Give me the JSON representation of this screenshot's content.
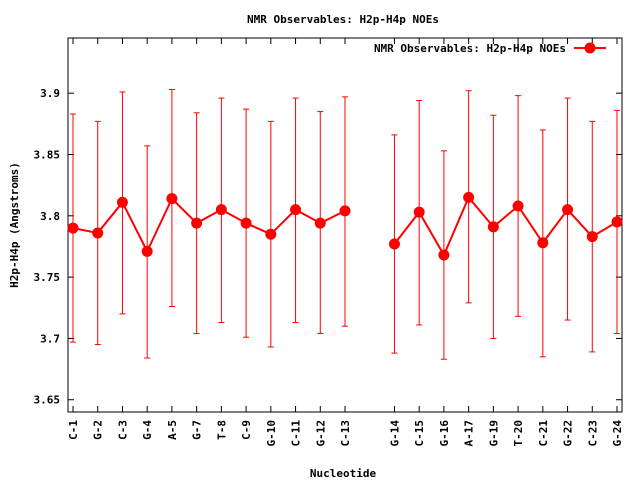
{
  "chart_data": {
    "type": "line",
    "title": "NMR Observables: H2p-H4p NOEs",
    "xlabel": "Nucleotide",
    "ylabel": "H2p-H4p (Angstroms)",
    "ylim": [
      3.64,
      3.945
    ],
    "yticks": [
      "3.65",
      "3.7",
      "3.75",
      "3.8",
      "3.85",
      "3.9"
    ],
    "grid": false,
    "legend_position": "top-right",
    "colors": {
      "series": "#ff0000",
      "axis": "#000000"
    },
    "series": [
      {
        "name": "NMR Observables: H2p-H4p NOEs",
        "points": [
          {
            "label": "C-1",
            "y": 3.79,
            "lo": 3.697,
            "hi": 3.883
          },
          {
            "label": "G-2",
            "y": 3.786,
            "lo": 3.695,
            "hi": 3.877
          },
          {
            "label": "C-3",
            "y": 3.811,
            "lo": 3.72,
            "hi": 3.901
          },
          {
            "label": "G-4",
            "y": 3.771,
            "lo": 3.684,
            "hi": 3.857
          },
          {
            "label": "A-5",
            "y": 3.814,
            "lo": 3.726,
            "hi": 3.903
          },
          {
            "label": "G-7",
            "y": 3.794,
            "lo": 3.704,
            "hi": 3.884
          },
          {
            "label": "T-8",
            "y": 3.805,
            "lo": 3.713,
            "hi": 3.896
          },
          {
            "label": "C-9",
            "y": 3.794,
            "lo": 3.701,
            "hi": 3.887
          },
          {
            "label": "G-10",
            "y": 3.785,
            "lo": 3.693,
            "hi": 3.877
          },
          {
            "label": "C-11",
            "y": 3.805,
            "lo": 3.713,
            "hi": 3.896
          },
          {
            "label": "G-12",
            "y": 3.794,
            "lo": 3.704,
            "hi": 3.885
          },
          {
            "label": "C-13",
            "y": 3.804,
            "lo": 3.71,
            "hi": 3.897
          },
          {
            "label": "G-14",
            "y": 3.777,
            "lo": 3.688,
            "hi": 3.866,
            "gap_before": true
          },
          {
            "label": "C-15",
            "y": 3.803,
            "lo": 3.711,
            "hi": 3.894
          },
          {
            "label": "G-16",
            "y": 3.768,
            "lo": 3.683,
            "hi": 3.853
          },
          {
            "label": "A-17",
            "y": 3.815,
            "lo": 3.729,
            "hi": 3.902
          },
          {
            "label": "G-19",
            "y": 3.791,
            "lo": 3.7,
            "hi": 3.882
          },
          {
            "label": "T-20",
            "y": 3.808,
            "lo": 3.718,
            "hi": 3.898
          },
          {
            "label": "C-21",
            "y": 3.778,
            "lo": 3.685,
            "hi": 3.87
          },
          {
            "label": "G-22",
            "y": 3.805,
            "lo": 3.715,
            "hi": 3.896
          },
          {
            "label": "C-23",
            "y": 3.783,
            "lo": 3.689,
            "hi": 3.877
          },
          {
            "label": "G-24",
            "y": 3.795,
            "lo": 3.704,
            "hi": 3.886
          }
        ]
      }
    ]
  }
}
